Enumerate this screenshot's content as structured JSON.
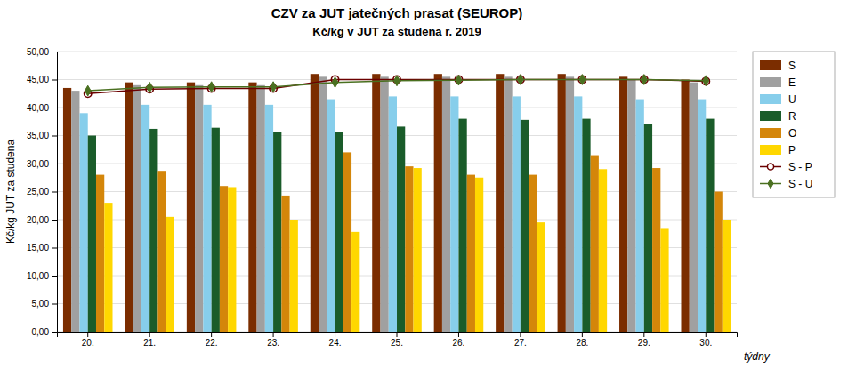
{
  "chart_data": {
    "type": "bar",
    "title": "CZV za JUT jatečných prasat (SEUROP)",
    "subtitle": "Kč/kg v JUT za studena r. 2019",
    "x_label": "týdny",
    "y_label": "Kč/kg JUT za studena",
    "categories": [
      "20.",
      "21.",
      "22.",
      "23.",
      "24.",
      "25.",
      "26.",
      "27.",
      "28.",
      "29.",
      "30."
    ],
    "series": [
      {
        "name": "S",
        "type": "bar",
        "color": "#7B2D00",
        "values": [
          43.5,
          44.5,
          44.5,
          44.5,
          46.0,
          46.0,
          46.0,
          46.0,
          46.0,
          45.5,
          45.0
        ]
      },
      {
        "name": "E",
        "type": "bar",
        "color": "#A0A0A0",
        "values": [
          43.0,
          44.0,
          44.0,
          44.0,
          45.5,
          45.5,
          45.5,
          45.5,
          45.5,
          45.0,
          44.5
        ]
      },
      {
        "name": "U",
        "type": "bar",
        "color": "#87CEEB",
        "values": [
          39.0,
          40.5,
          40.5,
          40.5,
          41.5,
          42.0,
          42.0,
          42.0,
          42.0,
          41.5,
          41.5
        ]
      },
      {
        "name": "R",
        "type": "bar",
        "color": "#1A5C2A",
        "values": [
          35.0,
          36.2,
          36.4,
          35.7,
          35.7,
          36.6,
          38.0,
          37.8,
          38.0,
          37.0,
          38.0
        ]
      },
      {
        "name": "O",
        "type": "bar",
        "color": "#D4860A",
        "values": [
          28.0,
          28.7,
          26.0,
          24.3,
          32.0,
          29.5,
          28.0,
          28.0,
          31.5,
          29.2,
          25.0
        ]
      },
      {
        "name": "P",
        "type": "bar",
        "color": "#FFD700",
        "values": [
          23.0,
          20.5,
          25.8,
          20.0,
          17.8,
          29.2,
          27.5,
          19.5,
          29.0,
          18.5,
          20.0
        ]
      },
      {
        "name": "S - P",
        "type": "line",
        "color": "#6B0000",
        "marker": "circle",
        "values": [
          42.5,
          43.3,
          43.4,
          43.4,
          45.0,
          45.0,
          45.0,
          45.0,
          45.0,
          45.0,
          44.7
        ]
      },
      {
        "name": "S - U",
        "type": "line",
        "color": "#4A7020",
        "marker": "diamond",
        "values": [
          43.0,
          43.6,
          43.7,
          43.7,
          44.5,
          44.8,
          44.9,
          45.0,
          45.0,
          45.0,
          44.8
        ]
      }
    ],
    "ylim": [
      0,
      50
    ],
    "yticks": [
      {
        "value": 0.0,
        "label": "0,00"
      },
      {
        "value": 5.0,
        "label": "5,00"
      },
      {
        "value": 10.0,
        "label": "10,00"
      },
      {
        "value": 15.0,
        "label": "15,00"
      },
      {
        "value": 20.0,
        "label": "20,00"
      },
      {
        "value": 25.0,
        "label": "25,00"
      },
      {
        "value": 30.0,
        "label": "30,00"
      },
      {
        "value": 35.0,
        "label": "35,00"
      },
      {
        "value": 40.0,
        "label": "40,00"
      },
      {
        "value": 45.0,
        "label": "45,00"
      },
      {
        "value": 50.0,
        "label": "50,00"
      }
    ],
    "grid": true,
    "legend": "right"
  }
}
